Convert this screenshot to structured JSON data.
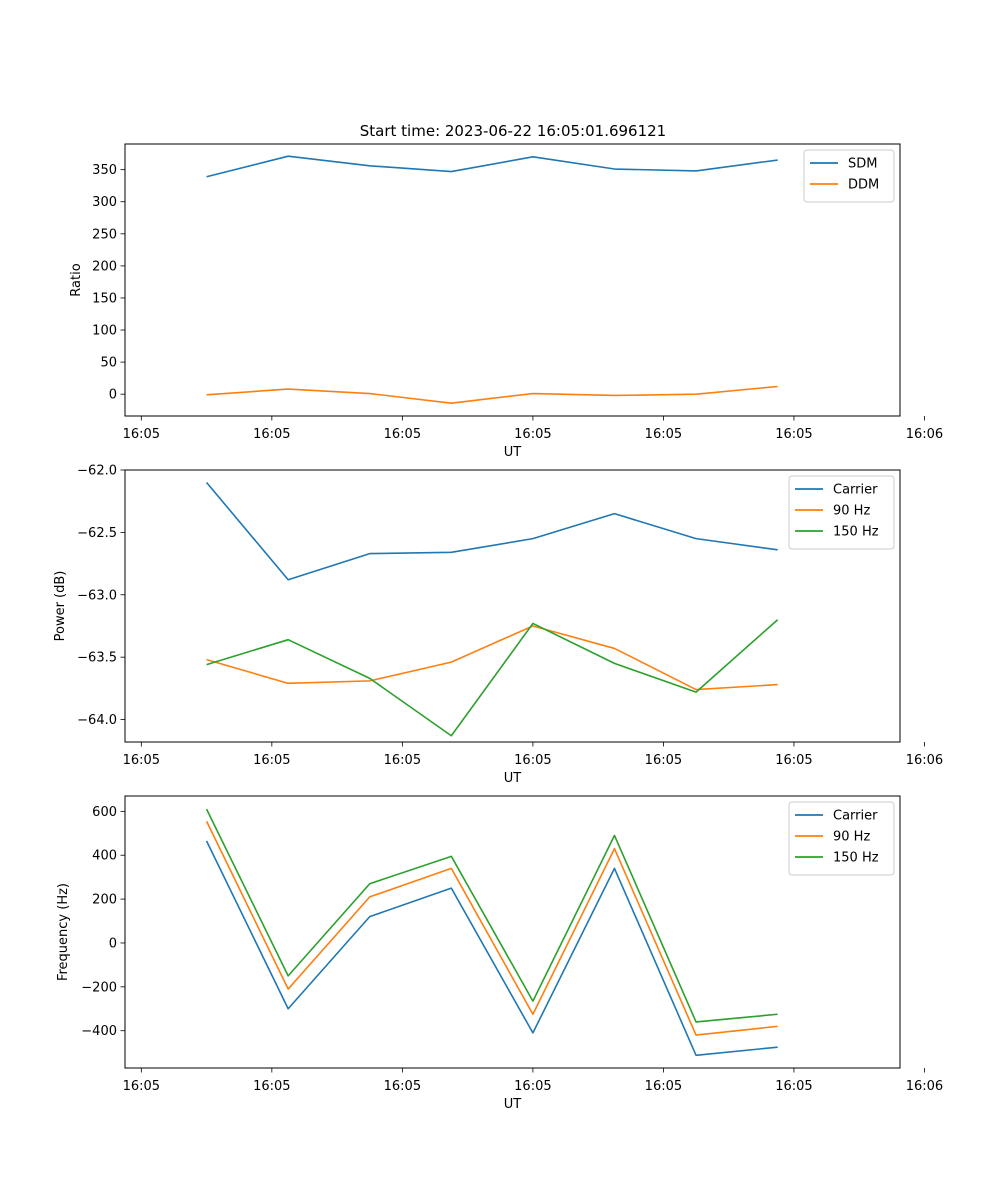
{
  "figure": {
    "title": "Start time: 2023-06-22 16:05:01.696121"
  },
  "colors": {
    "blue": "#1f77b4",
    "orange": "#ff7f0e",
    "green": "#2ca02c"
  },
  "chart_data": [
    {
      "type": "line",
      "ylabel": "Ratio",
      "xlabel": "UT",
      "xlim": [
        0.0,
        9.5
      ],
      "ylim": [
        -34,
        390
      ],
      "x": [
        1,
        2,
        3,
        4,
        5,
        6,
        7,
        8
      ],
      "xticks": [
        0.2,
        1.8,
        3.4,
        5.0,
        6.6,
        8.2,
        9.8
      ],
      "xtick_labels": [
        "16:05",
        "16:05",
        "16:05",
        "16:05",
        "16:05",
        "16:05",
        "16:06"
      ],
      "yticks": [
        0,
        50,
        100,
        150,
        200,
        250,
        300,
        350
      ],
      "ytick_labels": [
        "0",
        "50",
        "100",
        "150",
        "200",
        "250",
        "300",
        "350"
      ],
      "legend_position": "top-right",
      "series": [
        {
          "name": "SDM",
          "color": "#1f77b4",
          "values": [
            339,
            371,
            356,
            347,
            370,
            351,
            348,
            365
          ]
        },
        {
          "name": "DDM",
          "color": "#ff7f0e",
          "values": [
            -1,
            8,
            1,
            -14,
            1,
            -2,
            0,
            12
          ]
        }
      ]
    },
    {
      "type": "line",
      "ylabel": "Power (dB)",
      "xlabel": "UT",
      "xlim": [
        0.0,
        9.5
      ],
      "ylim": [
        -64.18,
        -62.0
      ],
      "x": [
        1,
        2,
        3,
        4,
        5,
        6,
        7,
        8
      ],
      "xticks": [
        0.2,
        1.8,
        3.4,
        5.0,
        6.6,
        8.2,
        9.8
      ],
      "xtick_labels": [
        "16:05",
        "16:05",
        "16:05",
        "16:05",
        "16:05",
        "16:05",
        "16:06"
      ],
      "yticks": [
        -62.0,
        -62.5,
        -63.0,
        -63.5,
        -64.0
      ],
      "ytick_labels": [
        "−62.0",
        "−62.5",
        "−63.0",
        "−63.5",
        "−64.0"
      ],
      "legend_position": "top-right",
      "series": [
        {
          "name": "Carrier",
          "color": "#1f77b4",
          "values": [
            -62.1,
            -62.88,
            -62.67,
            -62.66,
            -62.55,
            -62.35,
            -62.55,
            -62.64
          ]
        },
        {
          "name": "90 Hz",
          "color": "#ff7f0e",
          "values": [
            -63.52,
            -63.71,
            -63.69,
            -63.54,
            -63.25,
            -63.43,
            -63.76,
            -63.72
          ]
        },
        {
          "name": "150 Hz",
          "color": "#2ca02c",
          "values": [
            -63.56,
            -63.36,
            -63.67,
            -64.13,
            -63.23,
            -63.55,
            -63.78,
            -63.2
          ]
        }
      ]
    },
    {
      "type": "line",
      "ylabel": "Frequency (Hz)",
      "xlabel": "UT",
      "xlim": [
        0.0,
        9.5
      ],
      "ylim": [
        -570,
        670
      ],
      "x": [
        1,
        2,
        3,
        4,
        5,
        6,
        7,
        8
      ],
      "xticks": [
        0.2,
        1.8,
        3.4,
        5.0,
        6.6,
        8.2,
        9.8
      ],
      "xtick_labels": [
        "16:05",
        "16:05",
        "16:05",
        "16:05",
        "16:05",
        "16:05",
        "16:06"
      ],
      "yticks": [
        600,
        400,
        200,
        0,
        -200,
        -400
      ],
      "ytick_labels": [
        "600",
        "400",
        "200",
        "0",
        "−200",
        "−400"
      ],
      "legend_position": "top-right",
      "series": [
        {
          "name": "Carrier",
          "color": "#1f77b4",
          "values": [
            465,
            -300,
            120,
            250,
            -410,
            340,
            -512,
            -475
          ]
        },
        {
          "name": "90 Hz",
          "color": "#ff7f0e",
          "values": [
            555,
            -210,
            210,
            340,
            -325,
            430,
            -420,
            -380
          ]
        },
        {
          "name": "150 Hz",
          "color": "#2ca02c",
          "values": [
            610,
            -150,
            270,
            395,
            -265,
            490,
            -360,
            -325
          ]
        }
      ]
    }
  ]
}
